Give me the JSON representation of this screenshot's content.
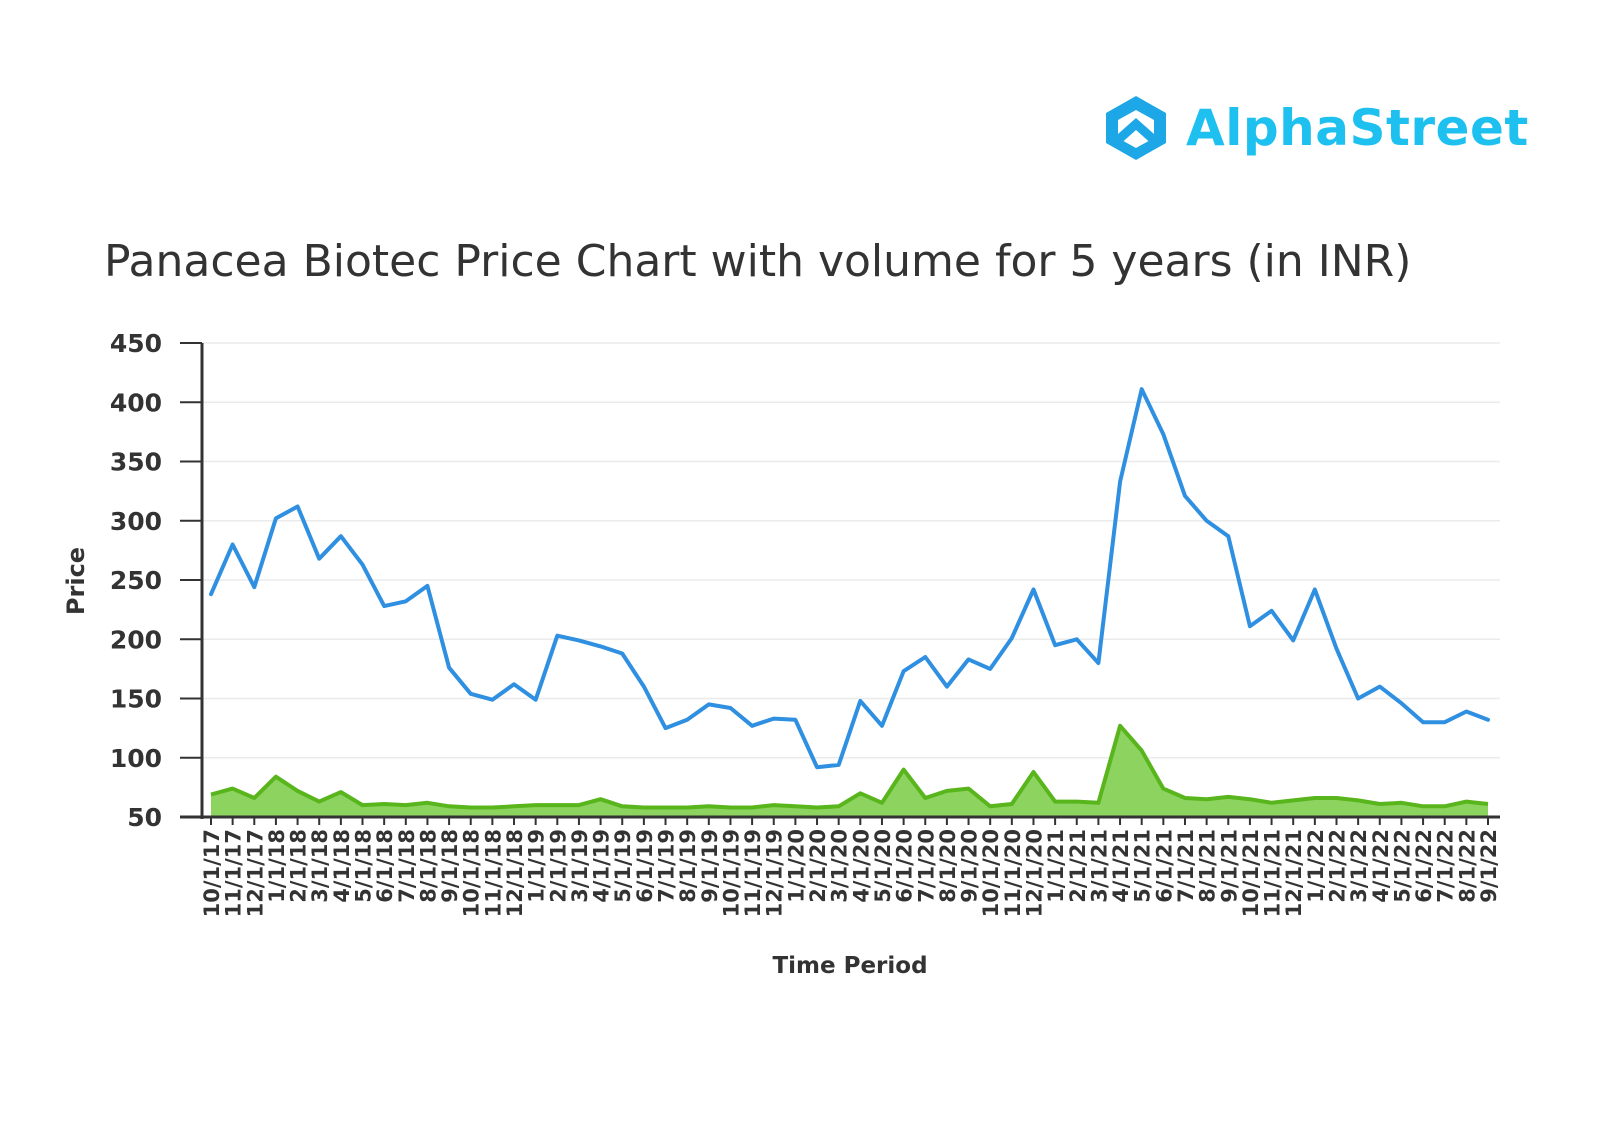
{
  "brand": {
    "name": "AlphaStreet",
    "icon": "alphastreet-logo-icon",
    "color": "#1ec0ef",
    "icon_color": "#1ea7e6"
  },
  "chart_data": {
    "type": "line",
    "title": "Panacea Biotec Price Chart with volume for 5 years (in INR)",
    "xlabel": "Time Period",
    "ylabel": "Price",
    "ylim": [
      50,
      450
    ],
    "yticks": [
      50,
      100,
      150,
      200,
      250,
      300,
      350,
      400,
      450
    ],
    "grid": true,
    "legend": "none",
    "categories": [
      "10/1/17",
      "11/1/17",
      "12/1/17",
      "1/1/18",
      "2/1/18",
      "3/1/18",
      "4/1/18",
      "5/1/18",
      "6/1/18",
      "7/1/18",
      "8/1/18",
      "9/1/18",
      "10/1/18",
      "11/1/18",
      "12/1/18",
      "1/1/19",
      "2/1/19",
      "3/1/19",
      "4/1/19",
      "5/1/19",
      "6/1/19",
      "7/1/19",
      "8/1/19",
      "9/1/19",
      "10/1/19",
      "11/1/19",
      "12/1/19",
      "1/1/20",
      "2/1/20",
      "3/1/20",
      "4/1/20",
      "5/1/20",
      "6/1/20",
      "7/1/20",
      "8/1/20",
      "9/1/20",
      "10/1/20",
      "11/1/20",
      "12/1/20",
      "1/1/21",
      "2/1/21",
      "3/1/21",
      "4/1/21",
      "5/1/21",
      "6/1/21",
      "7/1/21",
      "8/1/21",
      "9/1/21",
      "10/1/21",
      "11/1/21",
      "12/1/21",
      "1/1/22",
      "2/1/22",
      "3/1/22",
      "4/1/22",
      "5/1/22",
      "6/1/22",
      "7/1/22",
      "8/1/22",
      "9/1/22"
    ],
    "series": [
      {
        "kind": "line",
        "color": "#2f8fe0",
        "values": [
          238,
          280,
          244,
          302,
          312,
          268,
          287,
          263,
          228,
          232,
          245,
          176,
          154,
          149,
          162,
          149,
          203,
          199,
          194,
          188,
          160,
          125,
          132,
          145,
          142,
          127,
          133,
          132,
          92,
          94,
          148,
          127,
          173,
          185,
          160,
          183,
          175,
          201,
          242,
          195,
          200,
          180,
          333,
          411,
          373,
          321,
          300,
          287,
          211,
          224,
          199,
          242,
          192,
          150,
          160,
          146,
          130,
          130,
          139,
          132
        ]
      },
      {
        "kind": "area",
        "color": "#58b51c",
        "fill": "#8dd35f",
        "values": [
          69,
          74,
          66,
          84,
          72,
          63,
          71,
          60,
          61,
          60,
          62,
          59,
          58,
          58,
          59,
          60,
          60,
          60,
          65,
          59,
          58,
          58,
          58,
          59,
          58,
          58,
          60,
          59,
          58,
          59,
          70,
          62,
          90,
          66,
          72,
          74,
          59,
          61,
          88,
          63,
          63,
          62,
          127,
          106,
          74,
          66,
          65,
          67,
          65,
          62,
          64,
          66,
          66,
          64,
          61,
          62,
          59,
          59,
          63,
          61
        ]
      }
    ]
  }
}
